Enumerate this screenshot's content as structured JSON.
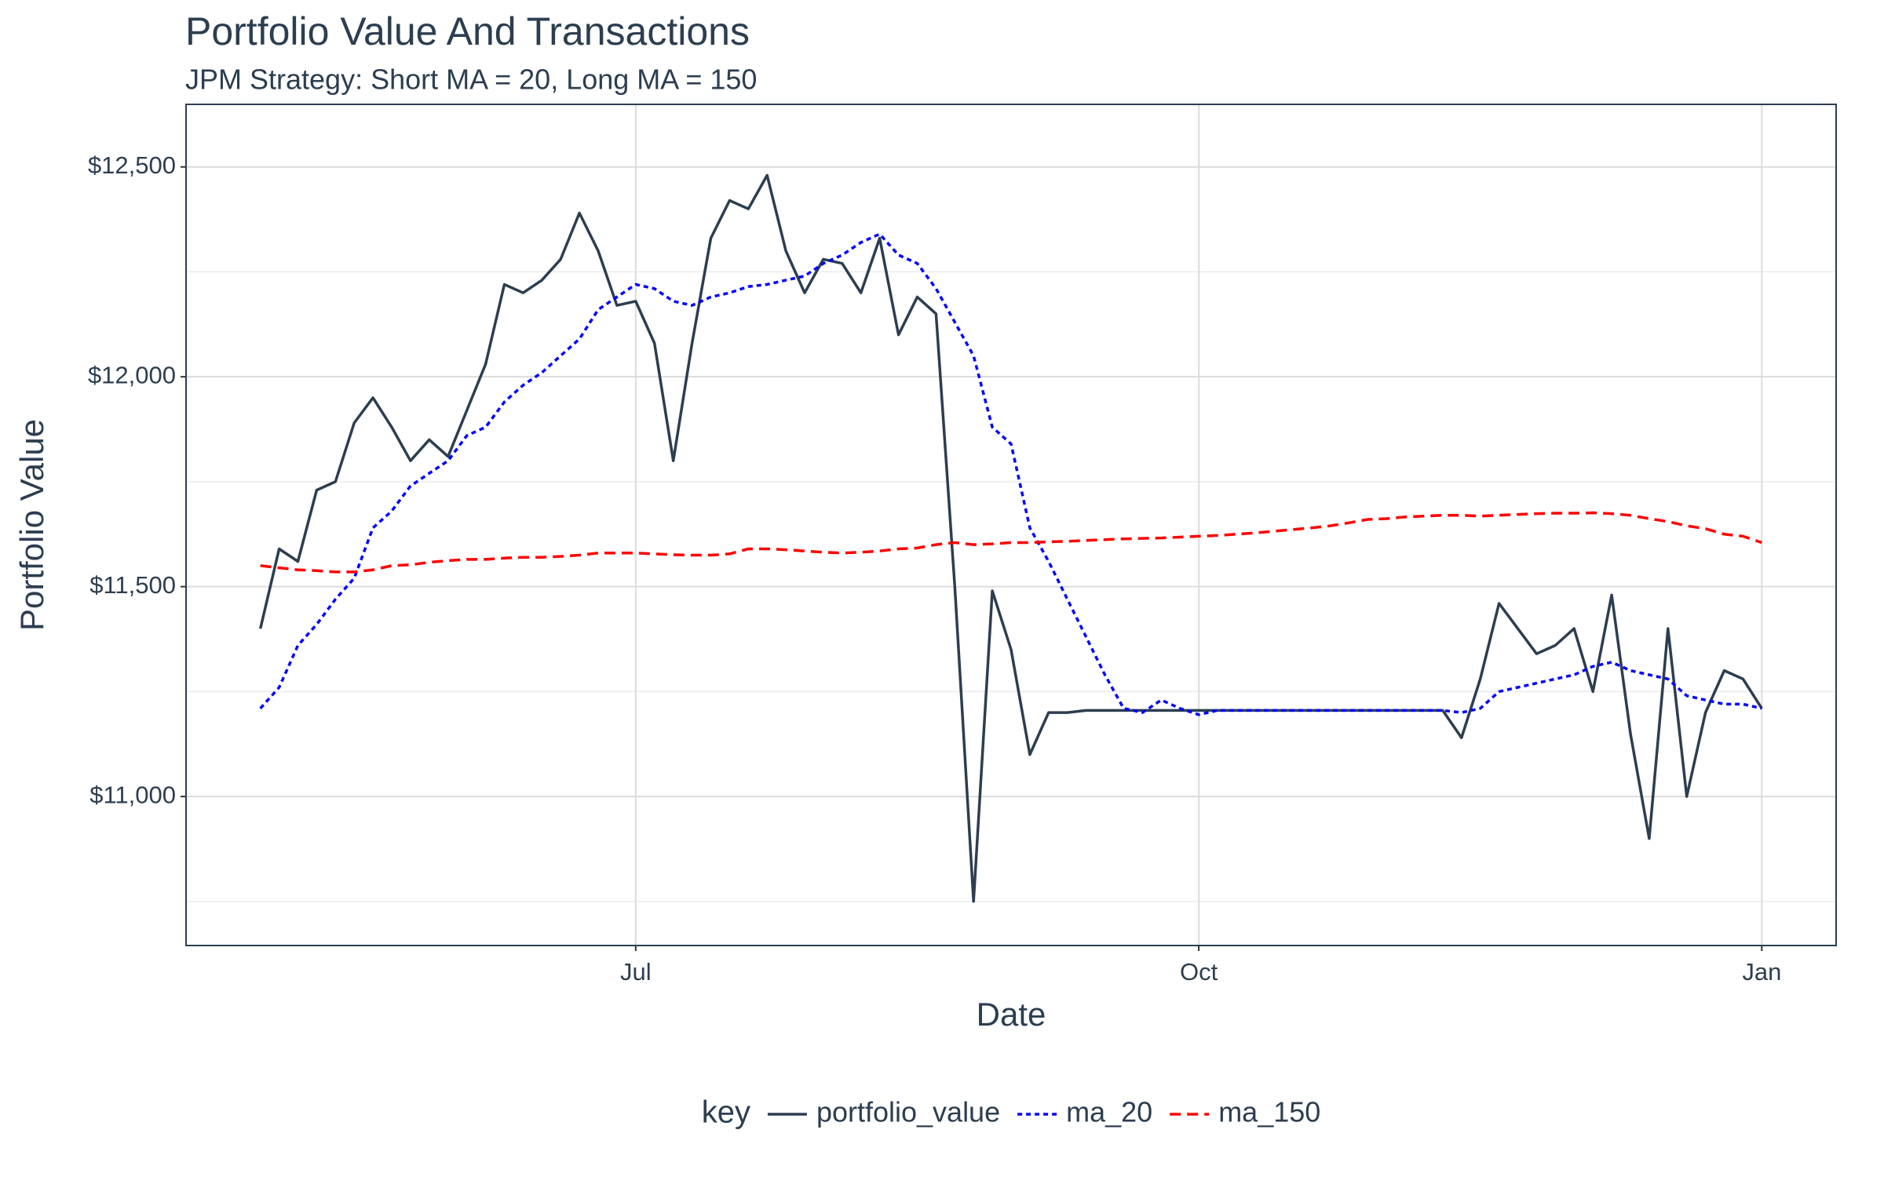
{
  "chart_data": {
    "type": "line",
    "title": "Portfolio Value And Transactions",
    "subtitle": "JPM Strategy: Short MA = 20, Long MA = 150",
    "x_label": "Date",
    "y_label": "Portfolio Value",
    "legend_title": "key",
    "legend_position": "bottom",
    "grid": true,
    "categories": [
      null,
      null,
      null,
      null,
      null,
      null,
      null,
      null,
      null,
      null,
      null,
      null,
      null,
      null,
      null,
      null,
      null,
      null,
      null,
      null,
      "Jul",
      null,
      null,
      null,
      null,
      null,
      null,
      null,
      null,
      null,
      null,
      null,
      null,
      null,
      null,
      null,
      null,
      null,
      null,
      null,
      null,
      null,
      null,
      null,
      null,
      null,
      null,
      null,
      null,
      null,
      "Oct",
      null,
      null,
      null,
      null,
      null,
      null,
      null,
      null,
      null,
      null,
      null,
      null,
      null,
      null,
      null,
      null,
      null,
      null,
      null,
      null,
      null,
      null,
      null,
      null,
      null,
      null,
      null,
      null,
      null,
      "Jan"
    ],
    "ylim": [
      10645,
      12649
    ],
    "yticks": [
      {
        "value": 11000,
        "label": "$11,000"
      },
      {
        "value": 11500,
        "label": "$11,500"
      },
      {
        "value": 12000,
        "label": "$12,000"
      },
      {
        "value": 12500,
        "label": "$12,500"
      }
    ],
    "minor_yticks": [
      10750,
      11250,
      11750,
      12250
    ],
    "series": [
      {
        "name": "portfolio_value",
        "color": "#2c3e50",
        "linetype": "solid",
        "values": [
          11400,
          11590,
          11560,
          11730,
          11750,
          11890,
          11950,
          11880,
          11800,
          11850,
          11810,
          11920,
          12030,
          12220,
          12200,
          12230,
          12280,
          12390,
          12300,
          12170,
          12180,
          12080,
          11800,
          12080,
          12330,
          12420,
          12400,
          12480,
          12300,
          12200,
          12280,
          12270,
          12200,
          12330,
          12100,
          12190,
          12150,
          11500,
          10750,
          11490,
          11350,
          11100,
          11200,
          11200,
          11205,
          11205,
          11205,
          11205,
          11205,
          11205,
          11205,
          11205,
          11205,
          11205,
          11205,
          11205,
          11205,
          11205,
          11205,
          11205,
          11205,
          11205,
          11205,
          11205,
          11140,
          11280,
          11460,
          11400,
          11340,
          11360,
          11400,
          11250,
          11480,
          11150,
          10900,
          11400,
          11000,
          11200,
          11300,
          11280,
          11210
        ]
      },
      {
        "name": "ma_20",
        "color": "#0000ff",
        "linetype": "dotted",
        "values": [
          11210,
          11260,
          11360,
          11410,
          11470,
          11520,
          11640,
          11680,
          11740,
          11770,
          11800,
          11860,
          11880,
          11940,
          11980,
          12010,
          12050,
          12090,
          12160,
          12190,
          12220,
          12210,
          12180,
          12170,
          12190,
          12200,
          12215,
          12220,
          12230,
          12240,
          12270,
          12290,
          12320,
          12340,
          12290,
          12270,
          12210,
          12130,
          12050,
          11880,
          11840,
          11640,
          11560,
          11470,
          11380,
          11290,
          11210,
          11200,
          11230,
          11210,
          11195,
          11205,
          11205,
          11205,
          11205,
          11205,
          11205,
          11205,
          11205,
          11205,
          11205,
          11205,
          11205,
          11205,
          11200,
          11210,
          11250,
          11260,
          11270,
          11280,
          11290,
          11310,
          11320,
          11300,
          11290,
          11280,
          11240,
          11230,
          11220,
          11220,
          11210
        ]
      },
      {
        "name": "ma_150",
        "color": "#ff0000",
        "linetype": "dashed",
        "values": [
          11550,
          11545,
          11540,
          11538,
          11535,
          11535,
          11540,
          11550,
          11552,
          11558,
          11562,
          11565,
          11565,
          11568,
          11570,
          11570,
          11572,
          11575,
          11580,
          11580,
          11580,
          11578,
          11576,
          11575,
          11575,
          11578,
          11590,
          11590,
          11588,
          11585,
          11582,
          11580,
          11582,
          11585,
          11590,
          11592,
          11600,
          11605,
          11600,
          11602,
          11605,
          11605,
          11607,
          11608,
          11610,
          11612,
          11614,
          11615,
          11616,
          11618,
          11620,
          11622,
          11625,
          11628,
          11632,
          11636,
          11640,
          11645,
          11652,
          11660,
          11662,
          11666,
          11668,
          11670,
          11670,
          11668,
          11670,
          11672,
          11674,
          11675,
          11675,
          11676,
          11674,
          11670,
          11662,
          11655,
          11645,
          11638,
          11625,
          11620,
          11605
        ]
      }
    ]
  }
}
